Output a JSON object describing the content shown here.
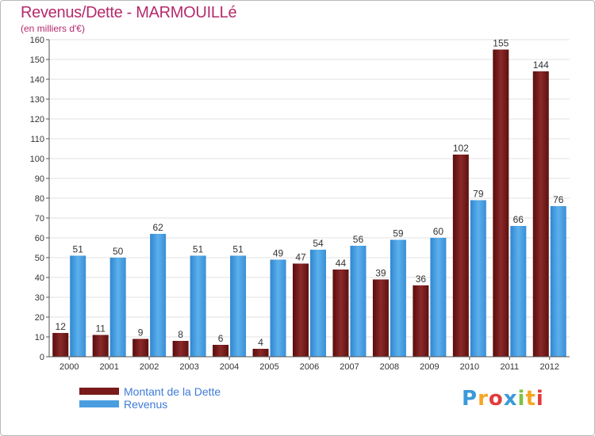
{
  "title": "Revenus/Dette - MARMOUILLé",
  "subtitle": "(en milliers d'€)",
  "colors": {
    "dette": "#7a1a1a",
    "revenus": "#4a9ee0",
    "title": "#b5296b",
    "legend_text": "#3f7bd8",
    "grid": "#e0e0e0"
  },
  "legend": {
    "dette_label": "Montant de la Dette",
    "revenus_label": "Revenus"
  },
  "logo": {
    "text": "Proxiti",
    "letters": [
      "P",
      "r",
      "o",
      "x",
      "i",
      "t",
      "i"
    ],
    "letter_colors": [
      "#3a9ad9",
      "#f5a623",
      "#e23b3b",
      "#3a9ad9",
      "#7cc242",
      "#f5a623",
      "#e23b3b"
    ]
  },
  "chart_data": {
    "type": "bar",
    "categories": [
      "2000",
      "2001",
      "2002",
      "2003",
      "2004",
      "2005",
      "2006",
      "2007",
      "2008",
      "2009",
      "2010",
      "2011",
      "2012"
    ],
    "series": [
      {
        "name": "Montant de la Dette",
        "values": [
          12,
          11,
          9,
          8,
          6,
          4,
          47,
          44,
          39,
          36,
          102,
          155,
          144
        ]
      },
      {
        "name": "Revenus",
        "values": [
          51,
          50,
          62,
          51,
          51,
          49,
          54,
          56,
          59,
          60,
          79,
          66,
          76
        ]
      }
    ],
    "ylim": [
      0,
      160
    ],
    "yticks": [
      0,
      10,
      20,
      30,
      40,
      50,
      60,
      70,
      80,
      90,
      100,
      110,
      120,
      130,
      140,
      150,
      160
    ],
    "grid": true,
    "legend_position": "bottom-left"
  }
}
